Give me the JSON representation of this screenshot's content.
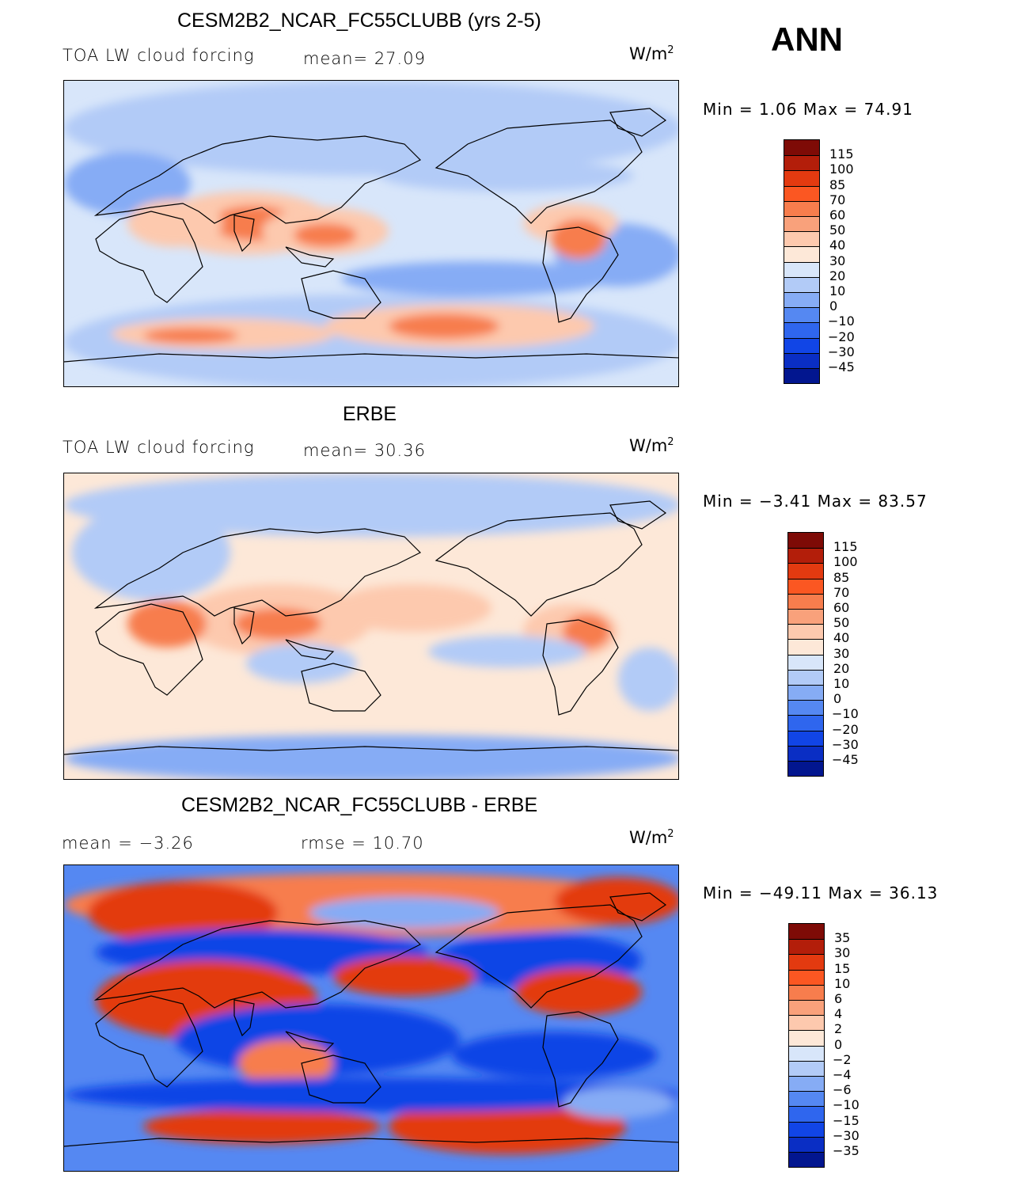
{
  "season": "ANN",
  "units_base": "W/m",
  "units_exp": "2",
  "panels": [
    {
      "title": "CESM2B2_NCAR_FC55CLUBB (yrs 2-5)",
      "left_label": "TOA LW cloud forcing",
      "mid_label": "mean=   27.09",
      "minmax": "Min =    1.06  Max =    74.91",
      "colorbar_levels": [
        "115",
        "100",
        "85",
        "70",
        "60",
        "50",
        "40",
        "30",
        "20",
        "10",
        "0",
        "−10",
        "−20",
        "−30",
        "−45"
      ],
      "colorbar_colors": [
        "#7e0b06",
        "#b31e0a",
        "#e33a10",
        "#fb5722",
        "#f77d4d",
        "#f9a17b",
        "#fdc9ae",
        "#fde8d8",
        "#d8e6fa",
        "#b2cbf7",
        "#86acf5",
        "#5588f2",
        "#2f66ee",
        "#1145e6",
        "#0a2ec4",
        "#02168f"
      ],
      "map_colors": {
        "ocean": "#d8e6fa",
        "warm": "#fdc9ae",
        "hot": "#f77d4d",
        "cool": "#b2cbf7",
        "cold": "#86acf5"
      }
    },
    {
      "title": "ERBE",
      "left_label": "TOA LW cloud forcing",
      "mid_label": "mean=   30.36",
      "minmax": "Min =   −3.41  Max =    83.57",
      "colorbar_levels": [
        "115",
        "100",
        "85",
        "70",
        "60",
        "50",
        "40",
        "30",
        "20",
        "10",
        "0",
        "−10",
        "−20",
        "−30",
        "−45"
      ],
      "colorbar_colors": [
        "#7e0b06",
        "#b31e0a",
        "#e33a10",
        "#fb5722",
        "#f77d4d",
        "#f9a17b",
        "#fdc9ae",
        "#fde8d8",
        "#d8e6fa",
        "#b2cbf7",
        "#86acf5",
        "#5588f2",
        "#2f66ee",
        "#1145e6",
        "#0a2ec4",
        "#02168f"
      ],
      "map_colors": {
        "ocean": "#fde8d8",
        "warm": "#fdc9ae",
        "hot": "#f77d4d",
        "cool": "#b2cbf7",
        "cold": "#86acf5"
      }
    },
    {
      "title": "CESM2B2_NCAR_FC55CLUBB - ERBE",
      "left_label": "mean =   −3.26",
      "mid_label": "rmse =    10.70",
      "minmax": "Min =  −49.11  Max =    36.13",
      "colorbar_levels": [
        "35",
        "30",
        "15",
        "10",
        "6",
        "4",
        "2",
        "0",
        "−2",
        "−4",
        "−6",
        "−10",
        "−15",
        "−30",
        "−35"
      ],
      "colorbar_colors": [
        "#7e0b06",
        "#b31e0a",
        "#e33a10",
        "#fb5722",
        "#f77d4d",
        "#f9a17b",
        "#fdc9ae",
        "#fde8d8",
        "#d8e6fa",
        "#b2cbf7",
        "#86acf5",
        "#5588f2",
        "#2f66ee",
        "#1145e6",
        "#0a2ec4",
        "#02168f"
      ],
      "map_colors": {
        "ocean": "#5588f2",
        "warm": "#f77d4d",
        "hot": "#e33a10",
        "cool": "#86acf5",
        "cold": "#1145e6"
      }
    }
  ],
  "chart_data": [
    {
      "type": "heatmap",
      "title": "CESM2B2_NCAR_FC55CLUBB (yrs 2-5)",
      "variable": "TOA LW cloud forcing",
      "units": "W/m2",
      "mean": 27.09,
      "min": 1.06,
      "max": 74.91,
      "levels": [
        115,
        100,
        85,
        70,
        60,
        50,
        40,
        30,
        20,
        10,
        0,
        -10,
        -20,
        -30,
        -45
      ]
    },
    {
      "type": "heatmap",
      "title": "ERBE",
      "variable": "TOA LW cloud forcing",
      "units": "W/m2",
      "mean": 30.36,
      "min": -3.41,
      "max": 83.57,
      "levels": [
        115,
        100,
        85,
        70,
        60,
        50,
        40,
        30,
        20,
        10,
        0,
        -10,
        -20,
        -30,
        -45
      ]
    },
    {
      "type": "heatmap",
      "title": "CESM2B2_NCAR_FC55CLUBB - ERBE",
      "units": "W/m2",
      "mean": -3.26,
      "rmse": 10.7,
      "min": -49.11,
      "max": 36.13,
      "levels": [
        35,
        30,
        15,
        10,
        6,
        4,
        2,
        0,
        -2,
        -4,
        -6,
        -10,
        -15,
        -30,
        -35
      ]
    }
  ]
}
